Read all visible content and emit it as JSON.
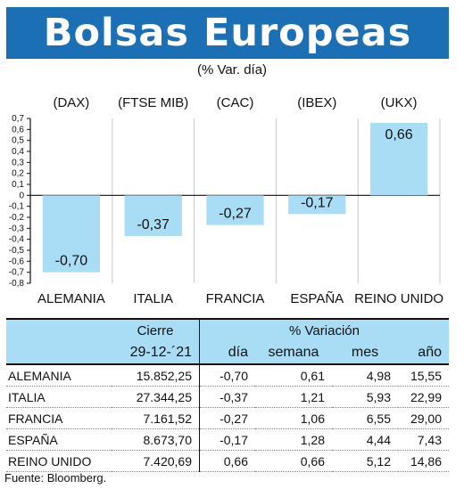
{
  "title": "Bolsas Europeas",
  "subtitle": "(% Var. día)",
  "chart_data": {
    "type": "bar",
    "categories": [
      "ALEMANIA",
      "ITALIA",
      "FRANCIA",
      "ESPAÑA",
      "REINO UNIDO"
    ],
    "index_labels": [
      "(DAX)",
      "(FTSE MIB)",
      "(CAC)",
      "(IBEX)",
      "(UKX)"
    ],
    "values": [
      -0.7,
      -0.37,
      -0.27,
      -0.17,
      0.66
    ],
    "value_labels": [
      "-0,70",
      "-0,37",
      "-0,27",
      "-0,17",
      "0,66"
    ],
    "ylim": [
      -0.8,
      0.7
    ],
    "yticks": [
      0.7,
      0.6,
      0.5,
      0.4,
      0.3,
      0.2,
      0.1,
      0,
      -0.1,
      -0.2,
      -0.3,
      -0.4,
      -0.5,
      -0.6,
      -0.7,
      -0.8
    ],
    "ytick_labels": [
      "0,7",
      "0,6",
      "0,5",
      "0,4",
      "0,3",
      "0,2",
      "0,1",
      "0",
      "-0,1",
      "-0,2",
      "-0,3",
      "-0,4",
      "-0,5",
      "-0,6",
      "-0,7",
      "-0,8"
    ],
    "grid": true,
    "bar_color": "#a8ddf5"
  },
  "table": {
    "header_cierre": "Cierre",
    "header_variacion": "% Variación",
    "date": "29-12-´21",
    "col_dia": "día",
    "col_semana": "semana",
    "col_mes": "mes",
    "col_anio": "año",
    "rows": [
      {
        "name": "ALEMANIA",
        "cierre": "15.852,25",
        "dia": "-0,70",
        "semana": "0,61",
        "mes": "4,98",
        "anio": "15,55"
      },
      {
        "name": "ITALIA",
        "cierre": "27.344,25",
        "dia": "-0,37",
        "semana": "1,21",
        "mes": "5,93",
        "anio": "22,99"
      },
      {
        "name": "FRANCIA",
        "cierre": "7.161,52",
        "dia": "-0,27",
        "semana": "1,06",
        "mes": "6,55",
        "anio": "29,00"
      },
      {
        "name": "ESPAÑA",
        "cierre": "8.673,70",
        "dia": "-0,17",
        "semana": "1,28",
        "mes": "4,44",
        "anio": "7,43"
      },
      {
        "name": "REINO UNIDO",
        "cierre": "7.420,69",
        "dia": "0,66",
        "semana": "0,66",
        "mes": "5,12",
        "anio": "14,86"
      }
    ]
  },
  "source": "Fuente: Bloomberg.",
  "colors": {
    "title_bg": "#1b6fb4",
    "bar": "#a8ddf5",
    "header_bg": "#a8ddf5"
  }
}
